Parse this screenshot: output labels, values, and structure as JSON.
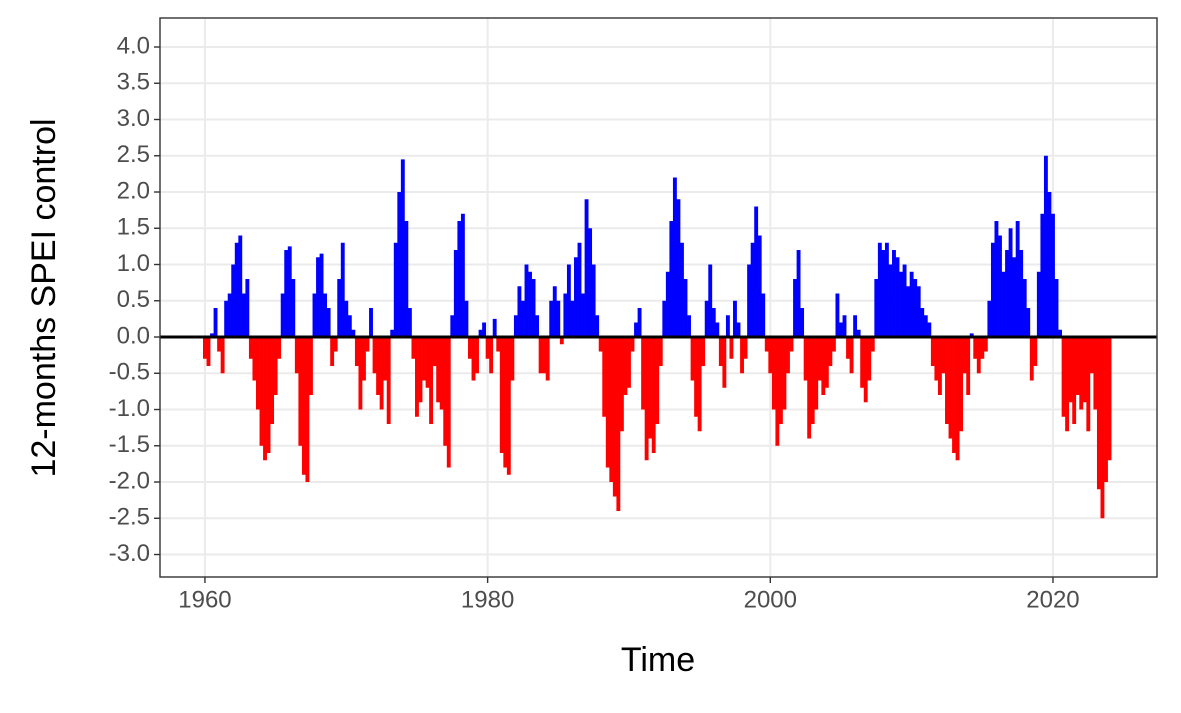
{
  "chart_data": {
    "type": "bar",
    "x_label": "Time",
    "y_label": "12-months SPEI control",
    "positive_color": "#0000ff",
    "negative_color": "#ff0000",
    "zero_line": true,
    "grid": true,
    "xlim": [
      1956.82,
      2027.36
    ],
    "xticks": [
      1960,
      1980,
      2000,
      2020
    ],
    "ylim": [
      -3.31,
      4.4
    ],
    "yticks": [
      {
        "value": -3,
        "label": "-3.0"
      },
      -2.5,
      {
        "value": -2,
        "label": "-2.0"
      },
      -1.5,
      {
        "value": -1,
        "label": "-1.0"
      },
      -0.5,
      {
        "value": 0,
        "label": "0.0"
      },
      0.5,
      {
        "value": 1,
        "label": "1.0"
      },
      1.5,
      {
        "value": 2,
        "label": "2.0"
      },
      2.5,
      {
        "value": 3,
        "label": "3.0"
      },
      3.5,
      {
        "value": 4,
        "label": "4.0"
      }
    ],
    "x": [
      1960,
      1960.25,
      1960.5,
      1960.75,
      1961,
      1961.25,
      1961.5,
      1961.75,
      1962,
      1962.25,
      1962.5,
      1962.75,
      1963,
      1963.25,
      1963.5,
      1963.75,
      1964,
      1964.25,
      1964.5,
      1964.75,
      1965,
      1965.25,
      1965.5,
      1965.75,
      1966,
      1966.25,
      1966.5,
      1966.75,
      1967,
      1967.25,
      1967.5,
      1967.75,
      1968,
      1968.25,
      1968.5,
      1968.75,
      1969,
      1969.25,
      1969.5,
      1969.75,
      1970,
      1970.25,
      1970.5,
      1970.75,
      1971,
      1971.25,
      1971.5,
      1971.75,
      1972,
      1972.25,
      1972.5,
      1972.75,
      1973,
      1973.25,
      1973.5,
      1973.75,
      1974,
      1974.25,
      1974.5,
      1974.75,
      1975,
      1975.25,
      1975.5,
      1975.75,
      1976,
      1976.25,
      1976.5,
      1976.75,
      1977,
      1977.25,
      1977.5,
      1977.75,
      1978,
      1978.25,
      1978.5,
      1978.75,
      1979,
      1979.25,
      1979.5,
      1979.75,
      1980,
      1980.25,
      1980.5,
      1980.75,
      1981,
      1981.25,
      1981.5,
      1981.75,
      1982,
      1982.25,
      1982.5,
      1982.75,
      1983,
      1983.25,
      1983.5,
      1983.75,
      1984,
      1984.25,
      1984.5,
      1984.75,
      1985,
      1985.25,
      1985.5,
      1985.75,
      1986,
      1986.25,
      1986.5,
      1986.75,
      1987,
      1987.25,
      1987.5,
      1987.75,
      1988,
      1988.25,
      1988.5,
      1988.75,
      1989,
      1989.25,
      1989.5,
      1989.75,
      1990,
      1990.25,
      1990.5,
      1990.75,
      1991,
      1991.25,
      1991.5,
      1991.75,
      1992,
      1992.25,
      1992.5,
      1992.75,
      1993,
      1993.25,
      1993.5,
      1993.75,
      1994,
      1994.25,
      1994.5,
      1994.75,
      1995,
      1995.25,
      1995.5,
      1995.75,
      1996,
      1996.25,
      1996.5,
      1996.75,
      1997,
      1997.25,
      1997.5,
      1997.75,
      1998,
      1998.25,
      1998.5,
      1998.75,
      1999,
      1999.25,
      1999.5,
      1999.75,
      2000,
      2000.25,
      2000.5,
      2000.75,
      2001,
      2001.25,
      2001.5,
      2001.75,
      2002,
      2002.25,
      2002.5,
      2002.75,
      2003,
      2003.25,
      2003.5,
      2003.75,
      2004,
      2004.25,
      2004.5,
      2004.75,
      2005,
      2005.25,
      2005.5,
      2005.75,
      2006,
      2006.25,
      2006.5,
      2006.75,
      2007,
      2007.25,
      2007.5,
      2007.75,
      2008,
      2008.25,
      2008.5,
      2008.75,
      2009,
      2009.25,
      2009.5,
      2009.75,
      2010,
      2010.25,
      2010.5,
      2010.75,
      2011,
      2011.25,
      2011.5,
      2011.75,
      2012,
      2012.25,
      2012.5,
      2012.75,
      2013,
      2013.25,
      2013.5,
      2013.75,
      2014,
      2014.25,
      2014.5,
      2014.75,
      2015,
      2015.25,
      2015.5,
      2015.75,
      2016,
      2016.25,
      2016.5,
      2016.75,
      2017,
      2017.25,
      2017.5,
      2017.75,
      2018,
      2018.25,
      2018.5,
      2018.75,
      2019,
      2019.25,
      2019.5,
      2019.75,
      2020,
      2020.25,
      2020.5,
      2020.75,
      2021,
      2021.25,
      2021.5,
      2021.75,
      2022,
      2022.25,
      2022.5,
      2022.75,
      2023,
      2023.25,
      2023.5,
      2023.75,
      2024
    ],
    "values": [
      -0.3,
      -0.4,
      0.05,
      0.4,
      -0.2,
      -0.5,
      0.5,
      0.6,
      1.0,
      1.3,
      1.4,
      0.6,
      0.8,
      -0.3,
      -0.6,
      -1.0,
      -1.5,
      -1.7,
      -1.6,
      -1.2,
      -0.8,
      -0.3,
      0.6,
      1.2,
      1.25,
      0.8,
      -0.5,
      -1.5,
      -1.9,
      -2.0,
      -0.8,
      0.6,
      1.1,
      1.15,
      0.6,
      0.4,
      -0.4,
      -0.2,
      0.8,
      1.3,
      0.5,
      0.3,
      0.1,
      -0.4,
      -1.0,
      -0.6,
      -0.2,
      0.4,
      -0.5,
      -0.8,
      -1.0,
      -0.6,
      -1.2,
      0.1,
      1.3,
      2.0,
      2.45,
      1.6,
      0.4,
      -0.3,
      -1.1,
      -0.9,
      -0.6,
      -0.7,
      -1.2,
      -0.4,
      -0.9,
      -1.0,
      -1.5,
      -1.8,
      0.3,
      1.2,
      1.6,
      1.7,
      0.5,
      -0.3,
      -0.6,
      -0.5,
      0.1,
      0.2,
      -0.3,
      -0.5,
      0.25,
      -0.2,
      -1.6,
      -1.8,
      -1.9,
      -0.6,
      0.3,
      0.7,
      0.5,
      1.0,
      0.9,
      0.8,
      0.3,
      -0.5,
      -0.5,
      -0.6,
      0.5,
      0.7,
      0.5,
      -0.1,
      0.6,
      1.0,
      0.5,
      1.1,
      1.3,
      0.6,
      1.9,
      1.5,
      1.0,
      0.3,
      -0.2,
      -1.1,
      -1.8,
      -2.0,
      -2.2,
      -2.4,
      -1.3,
      -0.8,
      -0.7,
      -0.2,
      0.2,
      0.4,
      -1.0,
      -1.7,
      -1.4,
      -1.6,
      -1.2,
      -0.4,
      0.5,
      0.9,
      1.6,
      2.2,
      1.9,
      1.3,
      0.8,
      0.3,
      -0.6,
      -1.1,
      -1.3,
      -0.4,
      0.5,
      1.0,
      0.4,
      0.2,
      -0.4,
      -0.7,
      0.3,
      -0.3,
      0.5,
      0.2,
      -0.5,
      -0.3,
      1.0,
      1.3,
      1.8,
      1.4,
      0.6,
      -0.2,
      -0.5,
      -1.0,
      -1.5,
      -1.2,
      -1.0,
      -0.5,
      -0.2,
      0.8,
      1.2,
      0.4,
      -0.6,
      -1.4,
      -1.2,
      -1.0,
      -0.6,
      -0.8,
      -0.7,
      -0.4,
      -0.2,
      0.6,
      0.2,
      0.3,
      -0.3,
      -0.5,
      0.3,
      0.1,
      -0.7,
      -0.9,
      -0.6,
      -0.2,
      0.8,
      1.3,
      1.2,
      1.3,
      1.0,
      1.2,
      1.1,
      0.9,
      1.0,
      0.7,
      0.9,
      0.8,
      0.7,
      0.4,
      0.3,
      0.2,
      -0.4,
      -0.6,
      -0.8,
      -0.5,
      -1.2,
      -1.4,
      -1.6,
      -1.7,
      -1.3,
      -0.5,
      -0.8,
      0.05,
      -0.3,
      -0.5,
      -0.3,
      -0.2,
      0.5,
      1.3,
      1.6,
      1.4,
      0.9,
      1.2,
      1.5,
      1.1,
      1.6,
      1.2,
      0.8,
      0.4,
      -0.6,
      -0.4,
      0.9,
      1.7,
      2.5,
      2.0,
      1.7,
      0.8,
      0.1,
      -1.1,
      -1.3,
      -0.9,
      -1.2,
      -0.8,
      -1.0,
      -0.9,
      -1.3,
      -0.5,
      -1.0,
      -2.1,
      -2.5,
      -2.0,
      -1.7
    ]
  }
}
